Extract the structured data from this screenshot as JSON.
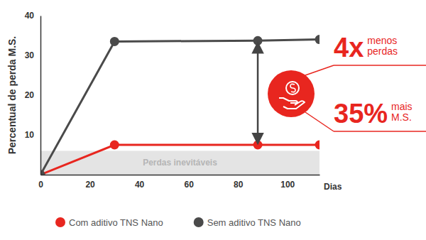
{
  "chart_data": {
    "type": "line",
    "y_label": "Percentual de perda M.S.",
    "x_label": "Dias",
    "x": [
      0,
      30,
      88,
      113
    ],
    "series": [
      {
        "name": "Com aditivo TNS Nano",
        "color": "#e8261f",
        "marker": "circle",
        "values": [
          0,
          7.5,
          7.5,
          7.5
        ]
      },
      {
        "name": "Sem aditivo TNS Nano",
        "color": "#4a4a4a",
        "marker": "circle",
        "values": [
          0,
          33.5,
          33.7,
          34
        ]
      }
    ],
    "xlim": [
      0,
      113
    ],
    "ylim": [
      0,
      40
    ],
    "xticks": [
      0,
      20,
      40,
      60,
      80,
      100
    ],
    "yticks": [
      10,
      20,
      30,
      40
    ],
    "grid": false,
    "legend": "bottom",
    "band": {
      "label": "Perdas inevitáveis",
      "from": 0,
      "to": 6,
      "color": "#e4e4e4"
    },
    "arrow": {
      "x": 88,
      "from": 9,
      "to": 32
    },
    "callouts": [
      {
        "big": "4x",
        "small": [
          "menos",
          "perdas"
        ]
      },
      {
        "big": "35%",
        "small": [
          "mais",
          "M.S."
        ]
      }
    ]
  }
}
